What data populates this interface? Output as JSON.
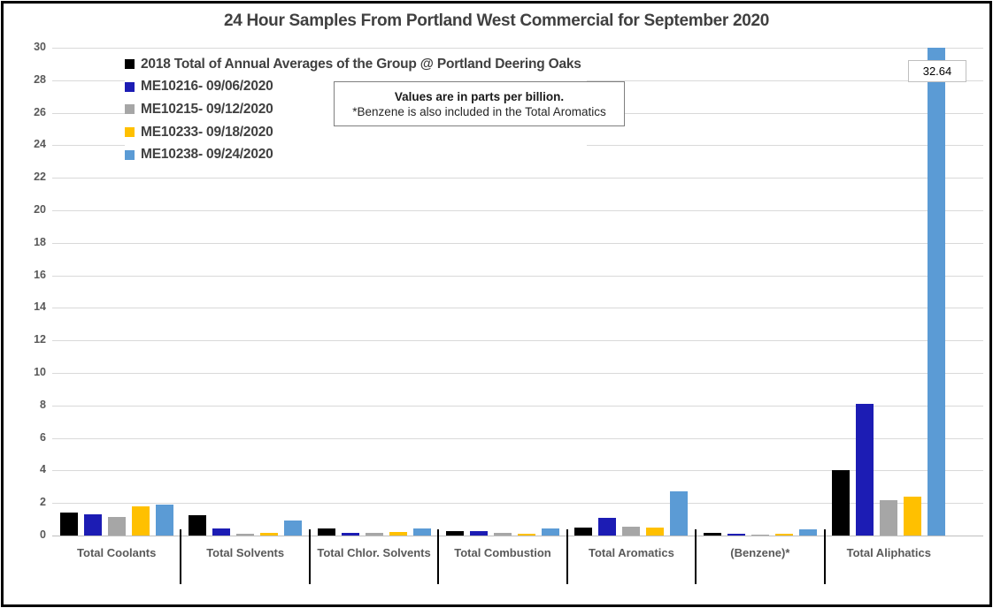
{
  "title": "24 Hour Samples From Portland West Commercial for September 2020",
  "note": {
    "line1": "Values are in parts per billion.",
    "line2": "*Benzene is also included in the Total Aromatics"
  },
  "annotation": {
    "label": "32.64"
  },
  "colors": {
    "grid": "#d9d9d9",
    "axis": "#bfbfbf",
    "title_text": "#404040",
    "tick_text": "#595959"
  },
  "chart_data": {
    "type": "bar",
    "title": "24 Hour Samples From Portland West Commercial for September 2020",
    "xlabel": "",
    "ylabel": "",
    "ylim": [
      0,
      30
    ],
    "ytick_step": 2,
    "grid": true,
    "legend_position": "top-left",
    "units_note": "Values are in parts per billion.",
    "categories": [
      "Total Coolants",
      "Total Solvents",
      "Total Chlor. Solvents",
      "Total Combustion",
      "Total Aromatics",
      "(Benzene)*",
      "Total Aliphatics"
    ],
    "series": [
      {
        "name": "2018 Total of Annual Averages of the Group @ Portland Deering Oaks",
        "color": "#000000",
        "values": [
          1.4,
          1.25,
          0.45,
          0.3,
          0.5,
          0.17,
          4.0
        ]
      },
      {
        "name": "ME10216- 09/06/2020",
        "color": "#1c1cb4",
        "values": [
          1.3,
          0.45,
          0.15,
          0.25,
          1.1,
          0.13,
          8.1
        ]
      },
      {
        "name": "ME10215- 09/12/2020",
        "color": "#a6a6a6",
        "values": [
          1.15,
          0.1,
          0.17,
          0.15,
          0.55,
          0.07,
          2.2
        ]
      },
      {
        "name": "ME10233- 09/18/2020",
        "color": "#ffc000",
        "values": [
          1.8,
          0.15,
          0.24,
          0.1,
          0.5,
          0.1,
          2.4
        ]
      },
      {
        "name": "ME10238- 09/24/2020",
        "color": "#5b9bd5",
        "values": [
          1.9,
          0.95,
          0.45,
          0.45,
          2.7,
          0.4,
          32.64
        ]
      }
    ],
    "data_labels": [
      {
        "series_index": 4,
        "category_index": 6,
        "text": "32.64",
        "note": "bar clipped at top of axis"
      }
    ]
  }
}
